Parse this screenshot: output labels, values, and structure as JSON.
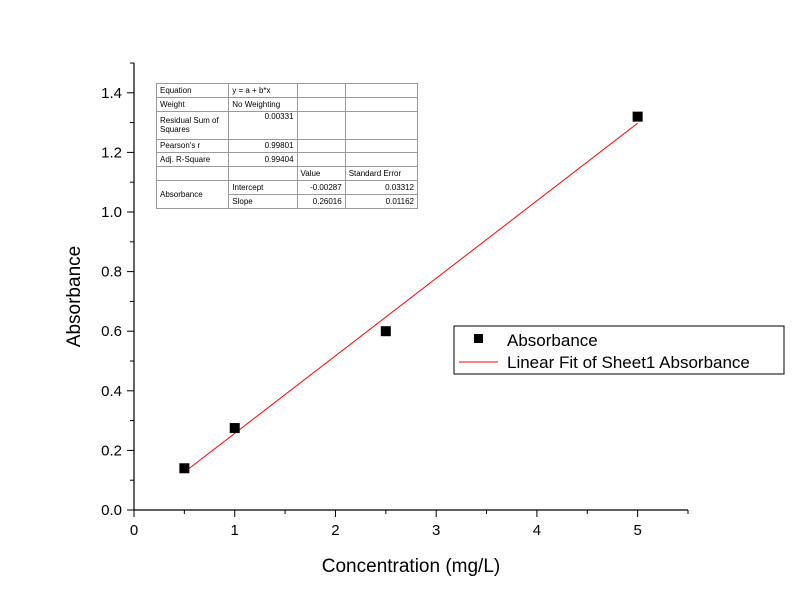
{
  "chart_data": {
    "type": "scatter",
    "xlabel": "Concentration (mg/L)",
    "ylabel": "Absorbance",
    "xlim": [
      0,
      5.5
    ],
    "ylim": [
      0,
      1.5
    ],
    "x_ticks": [
      "0",
      "1",
      "2",
      "3",
      "4",
      "5"
    ],
    "y_ticks": [
      "0.0",
      "0.2",
      "0.4",
      "0.6",
      "0.8",
      "1.0",
      "1.2",
      "1.4"
    ],
    "grid": false,
    "legend_position": "right",
    "series": [
      {
        "name": "Absorbance",
        "kind": "scatter",
        "marker": "square",
        "color": "#000000",
        "x": [
          0.5,
          1,
          2.5,
          5
        ],
        "y": [
          0.14,
          0.275,
          0.6,
          1.32
        ]
      },
      {
        "name": "Linear Fit of Sheet1 Absorbance",
        "kind": "line",
        "color": "#ff0000",
        "intercept": -0.00287,
        "slope": 0.26016,
        "x_range": [
          0.5,
          5
        ]
      }
    ]
  },
  "fit_table": {
    "equation_label": "Equation",
    "equation_value": "y = a + b*x",
    "weight_label": "Weight",
    "weight_value": "No Weighting",
    "rss_label": "Residual Sum of Squares",
    "rss_value": "0.00331",
    "pearson_label": "Pearson's r",
    "pearson_value": "0.99801",
    "adjr2_label": "Adj. R-Square",
    "adjr2_value": "0.99404",
    "value_header": "Value",
    "stderr_header": "Standard Error",
    "param_group": "Absorbance",
    "intercept_label": "Intercept",
    "intercept_value": "-0.00287",
    "intercept_err": "0.03312",
    "slope_label": "Slope",
    "slope_value": "0.26016",
    "slope_err": "0.01162"
  }
}
